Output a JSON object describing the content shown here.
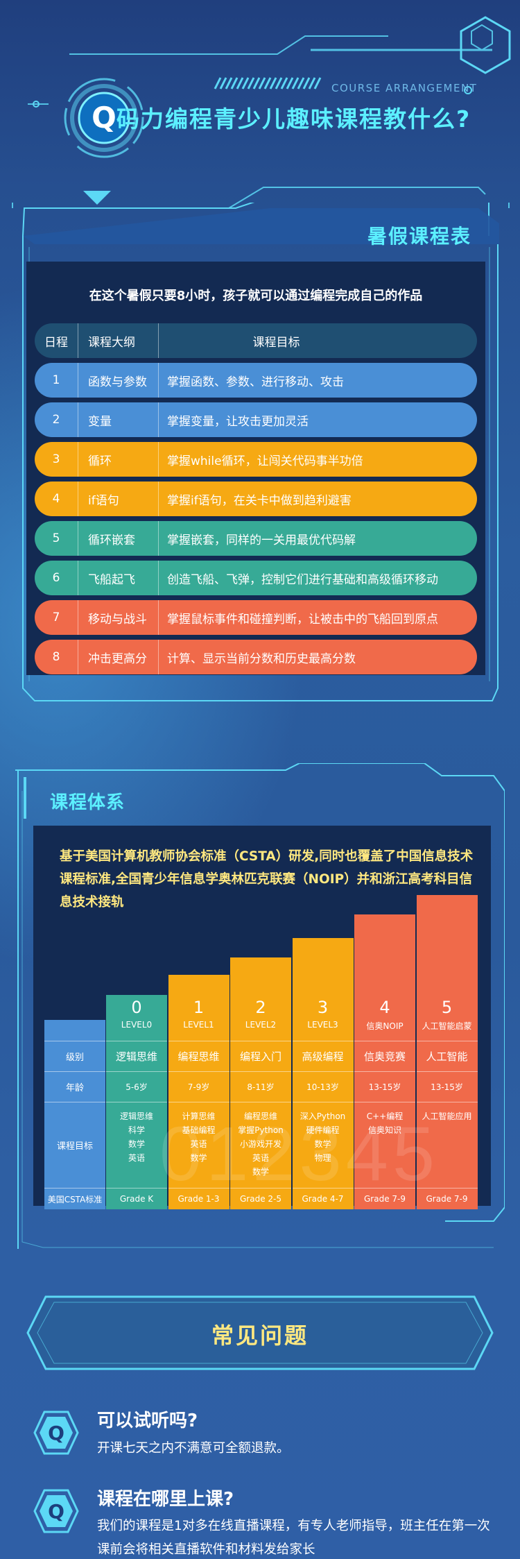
{
  "header": {
    "course_arrangement": "COURSE ARRANGEMENT",
    "title": "码力编程青少儿趣味课程教什么?",
    "badge_letter": "Q"
  },
  "summer": {
    "title": "暑假课程表",
    "intro": "在这个暑假只要8小时，孩子就可以通过编程完成自己的作品",
    "headers": [
      "日程",
      "课程大纲",
      "课程目标"
    ],
    "rows": [
      {
        "day": "1",
        "topic": "函数与参数",
        "goal": "掌握函数、参数、进行移动、攻击",
        "color": "#4a8fd6"
      },
      {
        "day": "2",
        "topic": "变量",
        "goal": "掌握变量，让攻击更加灵活",
        "color": "#4a8fd6"
      },
      {
        "day": "3",
        "topic": "循环",
        "goal": "掌握while循环，让闯关代码事半功倍",
        "color": "#f6a913"
      },
      {
        "day": "4",
        "topic": "if语句",
        "goal": "掌握if语句，在关卡中做到趋利避害",
        "color": "#f6a913"
      },
      {
        "day": "5",
        "topic": "循环嵌套",
        "goal": "掌握嵌套，同样的一关用最优代码解",
        "color": "#37aa96"
      },
      {
        "day": "6",
        "topic": "飞船起飞",
        "goal": "创造飞船、飞弹，控制它们进行基础和高级循环移动",
        "color": "#37aa96"
      },
      {
        "day": "7",
        "topic": "移动与战斗",
        "goal": "掌握鼠标事件和碰撞判断，让被击中的飞船回到原点",
        "color": "#f06a4a"
      },
      {
        "day": "8",
        "topic": "冲击更高分",
        "goal": "计算、显示当前分数和历史最高分数",
        "color": "#f06a4a"
      }
    ],
    "header_color": "#1f4f72"
  },
  "system": {
    "title": "课程体系",
    "intro": "基于美国计算机教师协会标准（CSTA）研发,同时也覆盖了中国信息技术课程标准,全国青少年信息学奥林匹克联赛（NOIP）并和浙江高考科目信息技术接轨",
    "row_labels": [
      "级别",
      "年龄",
      "课程目标",
      "美国CSTA标准"
    ],
    "levels": [
      {
        "num": "0",
        "label": "LEVEL0",
        "name": "逻辑思维",
        "age": "5-6岁",
        "goals": [
          "逻辑思维",
          "科学",
          "数学",
          "英语"
        ],
        "grade": "Grade K",
        "color": "#37aa96"
      },
      {
        "num": "1",
        "label": "LEVEL1",
        "name": "编程思维",
        "age": "7-9岁",
        "goals": [
          "计算思维",
          "基础编程",
          "英语",
          "数学"
        ],
        "grade": "Grade 1-3",
        "color": "#f6a913"
      },
      {
        "num": "2",
        "label": "LEVEL2",
        "name": "编程入门",
        "age": "8-11岁",
        "goals": [
          "编程思维",
          "掌握Python",
          "小游戏开发",
          "英语",
          "数学"
        ],
        "grade": "Grade 2-5",
        "color": "#f6a913"
      },
      {
        "num": "3",
        "label": "LEVEL3",
        "name": "高级编程",
        "age": "10-13岁",
        "goals": [
          "深入Python",
          "硬件编程",
          "数学",
          "物理"
        ],
        "grade": "Grade 4-7",
        "color": "#f6a913"
      },
      {
        "num": "4",
        "label": "信奥NOIP",
        "name": "信奥竞赛",
        "age": "13-15岁",
        "goals": [
          "C++编程",
          "信奥知识"
        ],
        "grade": "Grade 7-9",
        "color": "#f06a4a"
      },
      {
        "num": "5",
        "label": "人工智能启蒙",
        "name": "人工智能",
        "age": "13-15岁",
        "goals": [
          "人工智能应用"
        ],
        "grade": "Grade 7-9",
        "color": "#f06a4a"
      }
    ],
    "label_color": "#4a8fd6",
    "watermark": "012345"
  },
  "faq": {
    "title": "常见问题",
    "items": [
      {
        "icon": "Q",
        "q": "可以试听吗?",
        "a": "开课七天之内不满意可全额退款。"
      },
      {
        "icon": "Q",
        "q": "课程在哪里上课?",
        "a": "我们的课程是1对多在线直播课程，有专人老师指导，班主任在第一次课前会将相关直播软件和材料发给家长"
      }
    ]
  }
}
